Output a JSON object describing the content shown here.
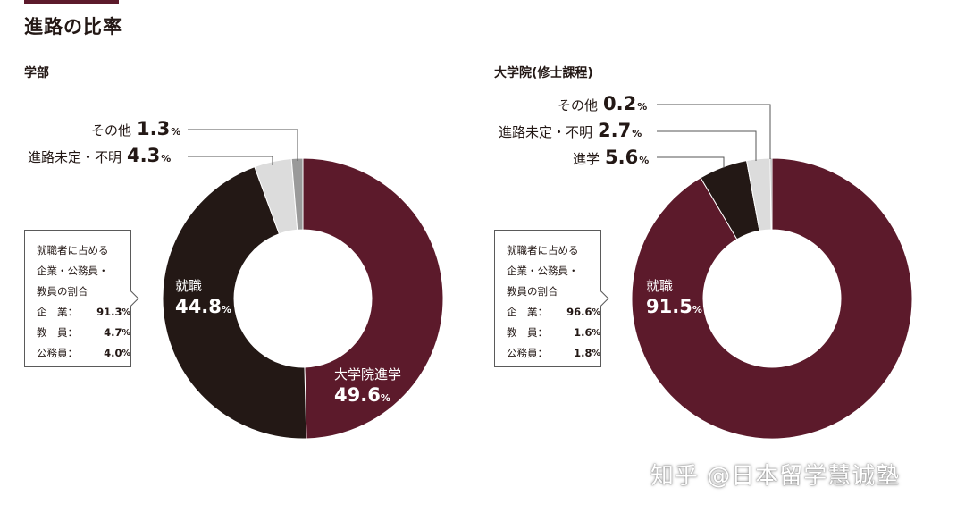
{
  "page_title": "進路の比率",
  "watermark": "知乎 @日本留学慧诚塾",
  "colors": {
    "maroon": "#5c1a2b",
    "dark": "#231815",
    "light_gray": "#dcdcdc",
    "mid_gray": "#9a9a9a"
  },
  "chart_data": [
    {
      "type": "pie",
      "title": "学部",
      "slices": [
        {
          "label": "大学院進学",
          "value": 49.6,
          "color": "#5c1a2b"
        },
        {
          "label": "就職",
          "value": 44.8,
          "color": "#231815"
        },
        {
          "label": "進路未定・不明",
          "value": 4.3,
          "color": "#dcdcdc"
        },
        {
          "label": "その他",
          "value": 1.3,
          "color": "#9a9a9a"
        }
      ],
      "labels": {
        "s0": {
          "name": "大学院進学",
          "value": "49.6",
          "unit": "%"
        },
        "s1": {
          "name": "就職",
          "value": "44.8",
          "unit": "%"
        },
        "s2": {
          "name": "進路未定・不明",
          "value": "4.3",
          "unit": "%"
        },
        "s3": {
          "name": "その他",
          "value": "1.3",
          "unit": "%"
        }
      },
      "employment_breakdown": {
        "title_lines": [
          "就職者に占める",
          "企業・公務員・",
          "教員の割合"
        ],
        "rows": [
          {
            "label": "企　業：",
            "value": "91.3",
            "unit": "%"
          },
          {
            "label": "教　員：",
            "value": "4.7",
            "unit": "%"
          },
          {
            "label": "公務員：",
            "value": "4.0",
            "unit": "%"
          }
        ]
      }
    },
    {
      "type": "pie",
      "title": "大学院(修士課程)",
      "slices": [
        {
          "label": "就職",
          "value": 91.5,
          "color": "#5c1a2b"
        },
        {
          "label": "進学",
          "value": 5.6,
          "color": "#231815"
        },
        {
          "label": "進路未定・不明",
          "value": 2.7,
          "color": "#dcdcdc"
        },
        {
          "label": "その他",
          "value": 0.2,
          "color": "#9a9a9a"
        }
      ],
      "labels": {
        "s0": {
          "name": "就職",
          "value": "91.5",
          "unit": "%"
        },
        "s1": {
          "name": "進学",
          "value": "5.6",
          "unit": "%"
        },
        "s2": {
          "name": "進路未定・不明",
          "value": "2.7",
          "unit": "%"
        },
        "s3": {
          "name": "その他",
          "value": "0.2",
          "unit": "%"
        }
      },
      "employment_breakdown": {
        "title_lines": [
          "就職者に占める",
          "企業・公務員・",
          "教員の割合"
        ],
        "rows": [
          {
            "label": "企　業：",
            "value": "96.6",
            "unit": "%"
          },
          {
            "label": "教　員：",
            "value": "1.6",
            "unit": "%"
          },
          {
            "label": "公務員：",
            "value": "1.8",
            "unit": "%"
          }
        ]
      }
    }
  ]
}
